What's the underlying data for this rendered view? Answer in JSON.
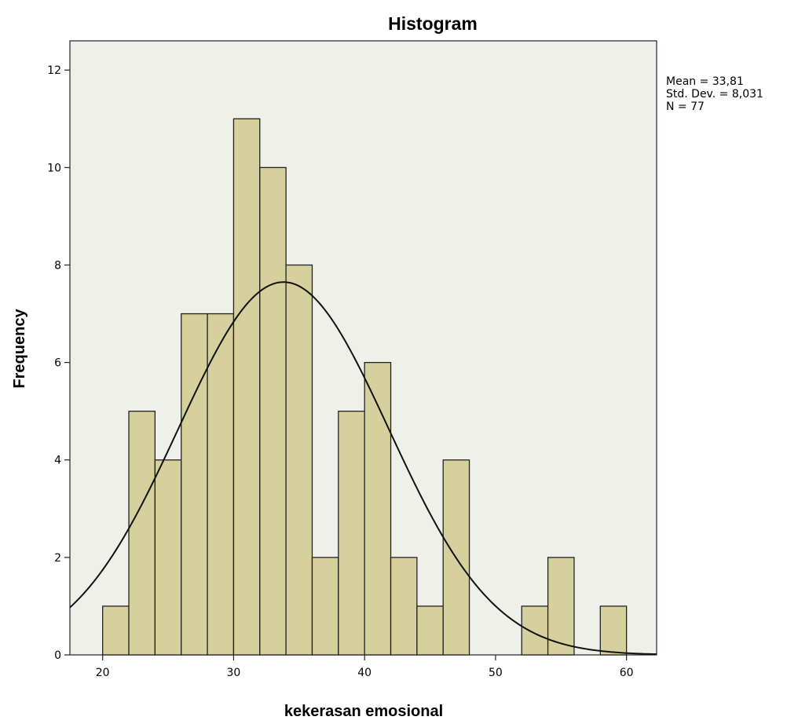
{
  "chart_data": {
    "type": "bar",
    "title": "Histogram",
    "xlabel": "kekerasan emosional",
    "ylabel": "Frequency",
    "xlim": [
      17.5,
      62.3
    ],
    "ylim": [
      0,
      12.6
    ],
    "x_ticks": [
      20,
      30,
      40,
      50,
      60
    ],
    "y_ticks": [
      0,
      2,
      4,
      6,
      8,
      10,
      12
    ],
    "bin_width": 2,
    "bins": [
      {
        "start": 20,
        "end": 22,
        "count": 1
      },
      {
        "start": 22,
        "end": 24,
        "count": 5
      },
      {
        "start": 24,
        "end": 26,
        "count": 4
      },
      {
        "start": 26,
        "end": 28,
        "count": 7
      },
      {
        "start": 28,
        "end": 30,
        "count": 7
      },
      {
        "start": 30,
        "end": 32,
        "count": 11
      },
      {
        "start": 32,
        "end": 34,
        "count": 10
      },
      {
        "start": 34,
        "end": 36,
        "count": 8
      },
      {
        "start": 36,
        "end": 38,
        "count": 2
      },
      {
        "start": 38,
        "end": 40,
        "count": 5
      },
      {
        "start": 40,
        "end": 42,
        "count": 6
      },
      {
        "start": 42,
        "end": 44,
        "count": 2
      },
      {
        "start": 44,
        "end": 46,
        "count": 1
      },
      {
        "start": 46,
        "end": 48,
        "count": 4
      },
      {
        "start": 52,
        "end": 54,
        "count": 1
      },
      {
        "start": 54,
        "end": 56,
        "count": 2
      },
      {
        "start": 58,
        "end": 60,
        "count": 1
      }
    ],
    "normal_curve": {
      "mean": 33.81,
      "sd": 8.031,
      "n": 77
    },
    "stats_lines": [
      "Mean = 33,81",
      "Std. Dev. = 8,031",
      "N = 77"
    ],
    "stats_placement": "top-right, outside plot",
    "grid": false,
    "colors": {
      "bar_fill": "#d6d09c",
      "bar_stroke": "#222222",
      "plot_background": "#f0f0ea",
      "curve": "#111111"
    }
  }
}
